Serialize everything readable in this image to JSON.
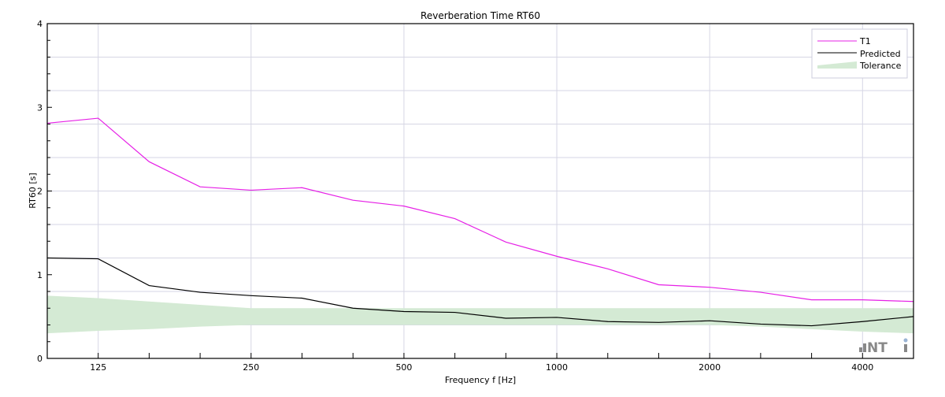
{
  "chart_data": {
    "type": "line",
    "title": "Reverberation Time RT60",
    "xlabel": "Frequency f [Hz]",
    "ylabel": "RT60 [s]",
    "x_scale": "log (third-octave bands)",
    "x": [
      100,
      125,
      160,
      200,
      250,
      315,
      400,
      500,
      630,
      800,
      1000,
      1250,
      1600,
      2000,
      2500,
      3150,
      4000,
      5000
    ],
    "x_ticks": [
      125,
      250,
      500,
      1000,
      2000,
      4000
    ],
    "ylim": [
      0,
      4
    ],
    "y_ticks": [
      0,
      1,
      2,
      3,
      4
    ],
    "grid": true,
    "legend_position": "top-right",
    "series": [
      {
        "name": "T1",
        "color": "#e620e6",
        "values": [
          2.81,
          2.87,
          2.35,
          2.05,
          2.01,
          2.04,
          1.89,
          1.82,
          1.67,
          1.39,
          1.22,
          1.07,
          0.88,
          0.85,
          0.79,
          0.7,
          0.7,
          0.68
        ]
      },
      {
        "name": "Predicted",
        "color": "#000000",
        "values": [
          1.2,
          1.19,
          0.87,
          0.79,
          0.75,
          0.72,
          0.6,
          0.56,
          0.55,
          0.48,
          0.49,
          0.44,
          0.43,
          0.45,
          0.41,
          0.39,
          0.44,
          0.5
        ]
      }
    ],
    "tolerance": {
      "name": "Tolerance",
      "color": "#d4ead4",
      "upper": [
        0.75,
        0.72,
        0.68,
        0.64,
        0.6,
        0.6,
        0.6,
        0.6,
        0.6,
        0.6,
        0.6,
        0.6,
        0.6,
        0.6,
        0.6,
        0.6,
        0.6,
        0.6
      ],
      "lower": [
        0.3,
        0.33,
        0.35,
        0.38,
        0.4,
        0.4,
        0.4,
        0.4,
        0.4,
        0.4,
        0.4,
        0.4,
        0.4,
        0.4,
        0.38,
        0.35,
        0.32,
        0.3
      ]
    }
  },
  "logo": "NTi"
}
